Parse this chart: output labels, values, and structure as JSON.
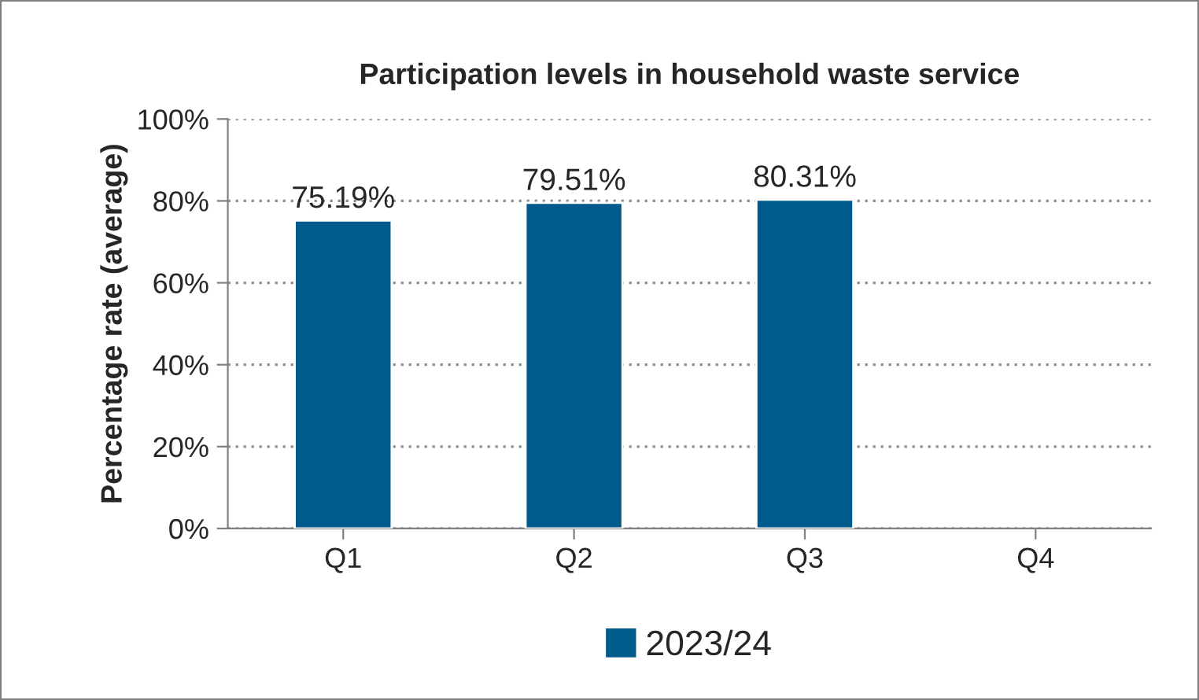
{
  "chart_data": {
    "type": "bar",
    "title": "Participation levels in household waste service",
    "ylabel": "Percentage rate (average)",
    "categories": [
      "Q1",
      "Q2",
      "Q3",
      "Q4"
    ],
    "series": [
      {
        "name": "2023/24",
        "color": "#005a8c",
        "values": [
          75.19,
          79.51,
          80.31,
          null
        ],
        "value_labels": [
          "75.19%",
          "79.51%",
          "80.31%",
          null
        ]
      }
    ],
    "ylim": [
      0,
      100
    ],
    "yticks": [
      {
        "value": 0,
        "label": "0%"
      },
      {
        "value": 20,
        "label": "20%"
      },
      {
        "value": 40,
        "label": "40%"
      },
      {
        "value": 60,
        "label": "60%"
      },
      {
        "value": 80,
        "label": "80%"
      },
      {
        "value": 100,
        "label": "100%"
      }
    ],
    "grid": "y",
    "legend": "bottom"
  }
}
